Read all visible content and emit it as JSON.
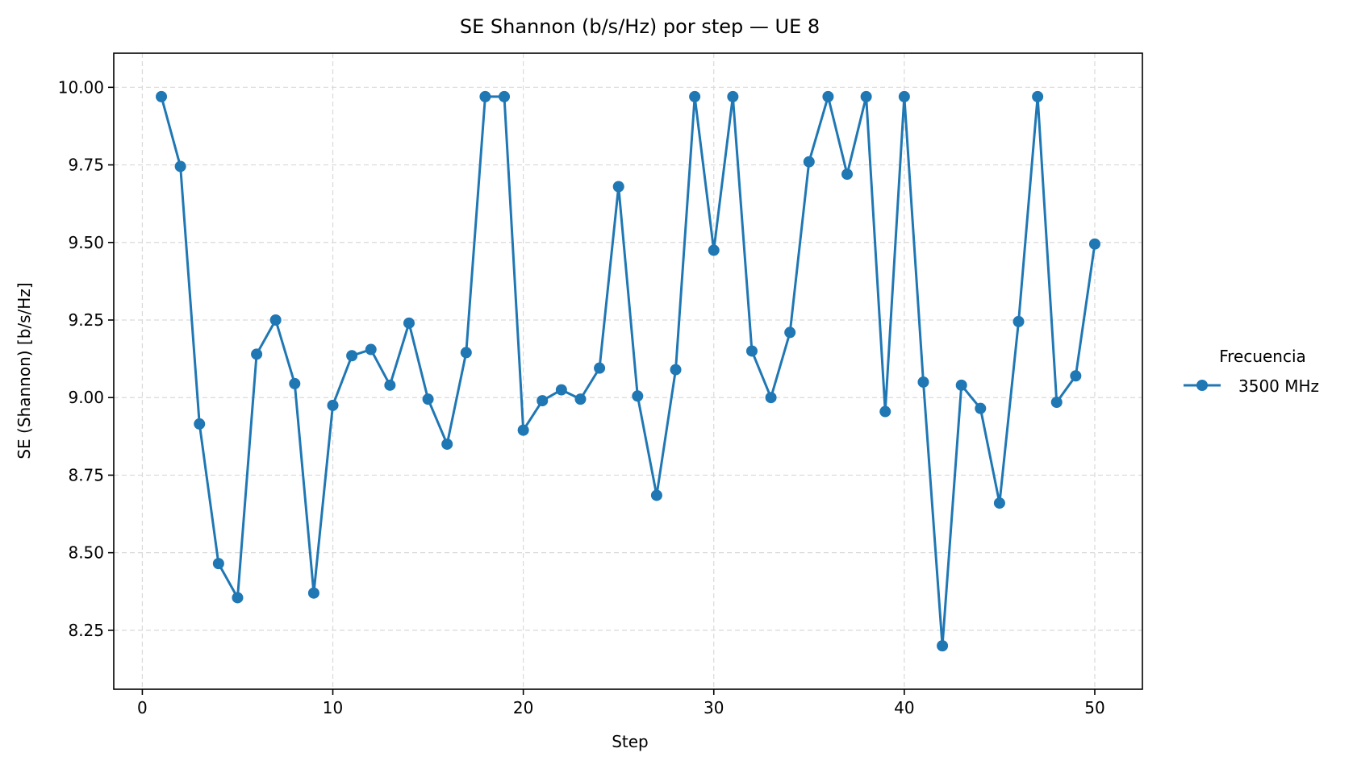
{
  "chart_data": {
    "type": "line",
    "title": "SE Shannon (b/s/Hz) por step — UE 8",
    "xlabel": "Step",
    "ylabel": "SE (Shannon) [b/s/Hz]",
    "xlim": [
      -1.5,
      52.5
    ],
    "ylim": [
      8.06,
      10.11
    ],
    "xticks": [
      0,
      10,
      20,
      30,
      40,
      50
    ],
    "yticks": [
      8.25,
      8.5,
      8.75,
      9.0,
      9.25,
      9.5,
      9.75,
      10.0
    ],
    "xtick_labels": [
      "0",
      "10",
      "20",
      "30",
      "40",
      "50"
    ],
    "ytick_labels": [
      "8.25",
      "8.50",
      "8.75",
      "9.00",
      "9.25",
      "9.50",
      "9.75",
      "10.00"
    ],
    "grid": true,
    "legend": {
      "title": "Frecuencia",
      "placement": "outside-right"
    },
    "x": [
      1,
      2,
      3,
      4,
      5,
      6,
      7,
      8,
      9,
      10,
      11,
      12,
      13,
      14,
      15,
      16,
      17,
      18,
      19,
      20,
      21,
      22,
      23,
      24,
      25,
      26,
      27,
      28,
      29,
      30,
      31,
      32,
      33,
      34,
      35,
      36,
      37,
      38,
      39,
      40,
      41,
      42,
      43,
      44,
      45,
      46,
      47,
      48,
      49,
      50
    ],
    "series": [
      {
        "name": "3500 MHz",
        "color": "#1f77b4",
        "marker": "circle",
        "values": [
          9.97,
          9.745,
          8.915,
          8.465,
          8.355,
          9.14,
          9.25,
          9.045,
          8.37,
          8.975,
          9.135,
          9.155,
          9.04,
          9.24,
          8.995,
          8.85,
          9.145,
          9.97,
          9.97,
          8.895,
          8.99,
          9.025,
          8.995,
          9.095,
          9.68,
          9.005,
          8.685,
          9.09,
          9.97,
          9.475,
          9.97,
          9.15,
          9.0,
          9.21,
          9.76,
          9.97,
          9.72,
          9.97,
          8.955,
          9.97,
          9.05,
          8.2,
          9.04,
          8.965,
          8.66,
          9.245,
          9.97,
          8.985,
          9.07,
          9.495
        ]
      }
    ]
  }
}
